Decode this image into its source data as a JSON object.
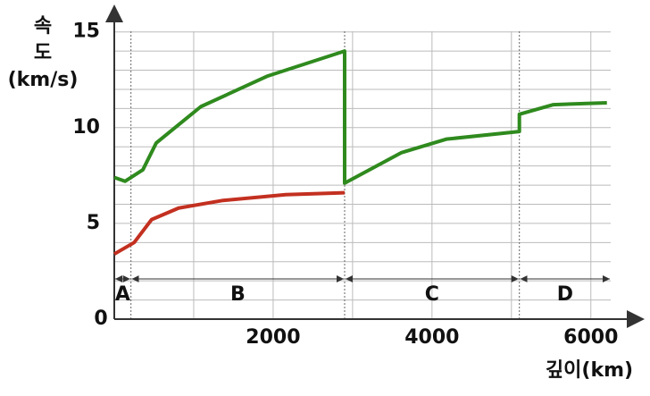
{
  "chart_data": {
    "type": "line",
    "y_label": [
      "속",
      "도",
      "(km/s)"
    ],
    "x_label": "깊이(km)",
    "xlim": [
      0,
      6250
    ],
    "ylim": [
      0,
      15.5
    ],
    "xticks": [
      0,
      2000,
      4000,
      6000
    ],
    "yticks": [
      5,
      10,
      15
    ],
    "xminorticks": [
      1000,
      2000,
      3000,
      4000,
      5000,
      6000
    ],
    "yminorticks": [
      1,
      2,
      3,
      4,
      5,
      6,
      7,
      8,
      9,
      10,
      11,
      12,
      13,
      14,
      15
    ],
    "grid": true,
    "boundaries": [
      210,
      2900,
      5100
    ],
    "regions": [
      "A",
      "B",
      "C",
      "D"
    ],
    "series": [
      {
        "color": "#2f8a1e",
        "x": [
          0,
          135,
          360,
          528,
          1090,
          1933,
          2900,
          2900,
          3618,
          4180,
          5100,
          5100,
          5528,
          6202
        ],
        "values": [
          7.4,
          7.2,
          7.8,
          9.2,
          11.1,
          12.7,
          14.0,
          7.1,
          8.7,
          9.4,
          9.8,
          10.7,
          11.2,
          11.3
        ]
      },
      {
        "color": "#c33020",
        "x": [
          0,
          250,
          470,
          810,
          1370,
          2160,
          2900
        ],
        "values": [
          3.4,
          4.0,
          5.2,
          5.8,
          6.2,
          6.5,
          6.6
        ]
      }
    ]
  }
}
